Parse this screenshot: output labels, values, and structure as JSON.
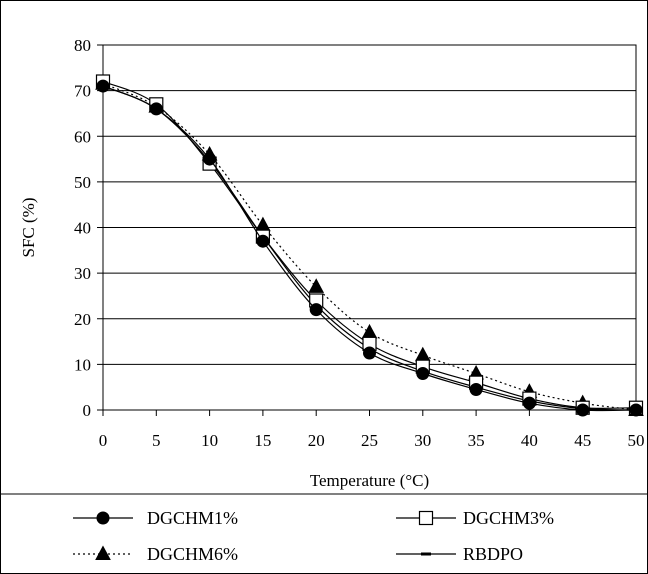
{
  "chart_data": {
    "type": "line",
    "title": "",
    "xlabel": "Temperature (°C)",
    "ylabel": "SFC (%)",
    "x": [
      0,
      5,
      10,
      15,
      20,
      25,
      30,
      35,
      40,
      45,
      50
    ],
    "xlim": [
      0,
      50
    ],
    "ylim": [
      0,
      80
    ],
    "xticks": [
      "0",
      "5",
      "10",
      "15",
      "20",
      "25",
      "30",
      "35",
      "40",
      "45",
      "50"
    ],
    "yticks": [
      "0",
      "10",
      "20",
      "30",
      "40",
      "50",
      "60",
      "70",
      "80"
    ],
    "grid": "horizontal",
    "legend_position": "bottom",
    "series": [
      {
        "name": "DGCHM1%",
        "marker": "filled-circle",
        "line": "solid",
        "values": [
          71,
          66,
          55,
          37,
          22,
          12.5,
          8,
          4.5,
          1.5,
          0,
          0
        ]
      },
      {
        "name": "DGCHM3%",
        "marker": "open-square",
        "line": "solid",
        "values": [
          72,
          67,
          54,
          38,
          24,
          14.5,
          9.5,
          6,
          2.5,
          0.5,
          0.5
        ]
      },
      {
        "name": "DGCHM6%",
        "marker": "filled-triangle",
        "line": "dotted",
        "values": [
          71.5,
          66.5,
          56,
          40.5,
          27,
          17,
          12,
          8,
          4,
          1.5,
          0
        ]
      },
      {
        "name": "RBDPO",
        "marker": "dash",
        "line": "solid",
        "values": [
          71,
          66,
          54.5,
          38,
          23,
          13.5,
          8.5,
          5,
          2,
          0.3,
          0
        ]
      }
    ],
    "colors": {
      "line": "#000000",
      "background": "#ffffff",
      "marker_open_fill": "#ffffff"
    }
  }
}
